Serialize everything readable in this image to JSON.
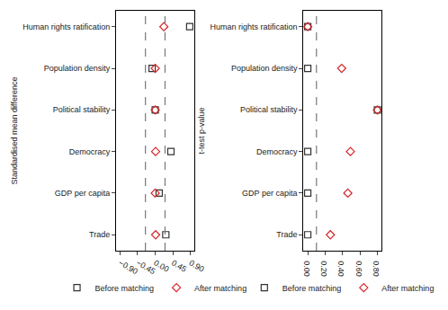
{
  "chart_data": [
    {
      "type": "scatter",
      "y_label": "Standardised mean difference",
      "categories": [
        "Human rights ratification",
        "Population density",
        "Political stability",
        "Democracy",
        "GDP per capita",
        "Trade"
      ],
      "series": [
        {
          "name": "Before matching",
          "color": "#333333",
          "marker": "square-open",
          "values": [
            0.88,
            -0.08,
            0.0,
            0.4,
            0.1,
            0.27
          ]
        },
        {
          "name": "After matching",
          "color": "#d62728",
          "marker": "diamond-open",
          "values": [
            0.22,
            0.0,
            0.0,
            0.01,
            0.0,
            0.01
          ]
        }
      ],
      "xlim": [
        -1.0,
        1.0
      ],
      "xticks": [
        {
          "value": -0.9,
          "label": "−0.90"
        },
        {
          "value": -0.45,
          "label": "−0.45"
        },
        {
          "value": 0,
          "label": "0.00"
        },
        {
          "value": 0.45,
          "label": "0.45"
        },
        {
          "value": 0.9,
          "label": "0.90"
        }
      ],
      "reference_lines": [
        -0.25,
        0.25
      ],
      "grid": false,
      "legend": "bottom"
    },
    {
      "type": "scatter",
      "y_label": "t-test p-value",
      "categories": [
        "Human rights ratification",
        "Population density",
        "Political stability",
        "Democracy",
        "GDP per capita",
        "Trade"
      ],
      "series": [
        {
          "name": "Before matching",
          "color": "#333333",
          "marker": "square-open",
          "values": [
            0.0,
            0.0,
            0.8,
            0.0,
            0.0,
            0.0
          ]
        },
        {
          "name": "After matching",
          "color": "#d62728",
          "marker": "diamond-open",
          "values": [
            0.0,
            0.39,
            0.8,
            0.49,
            0.46,
            0.26
          ]
        }
      ],
      "xlim": [
        -0.05,
        0.85
      ],
      "xticks": [
        {
          "value": 0,
          "label": "0.00"
        },
        {
          "value": 0.2,
          "label": "0.20"
        },
        {
          "value": 0.4,
          "label": "0.40"
        },
        {
          "value": 0.6,
          "label": "0.60"
        },
        {
          "value": 0.8,
          "label": "0.80"
        }
      ],
      "reference_lines": [
        0.1
      ],
      "grid": false,
      "legend": "bottom"
    }
  ]
}
